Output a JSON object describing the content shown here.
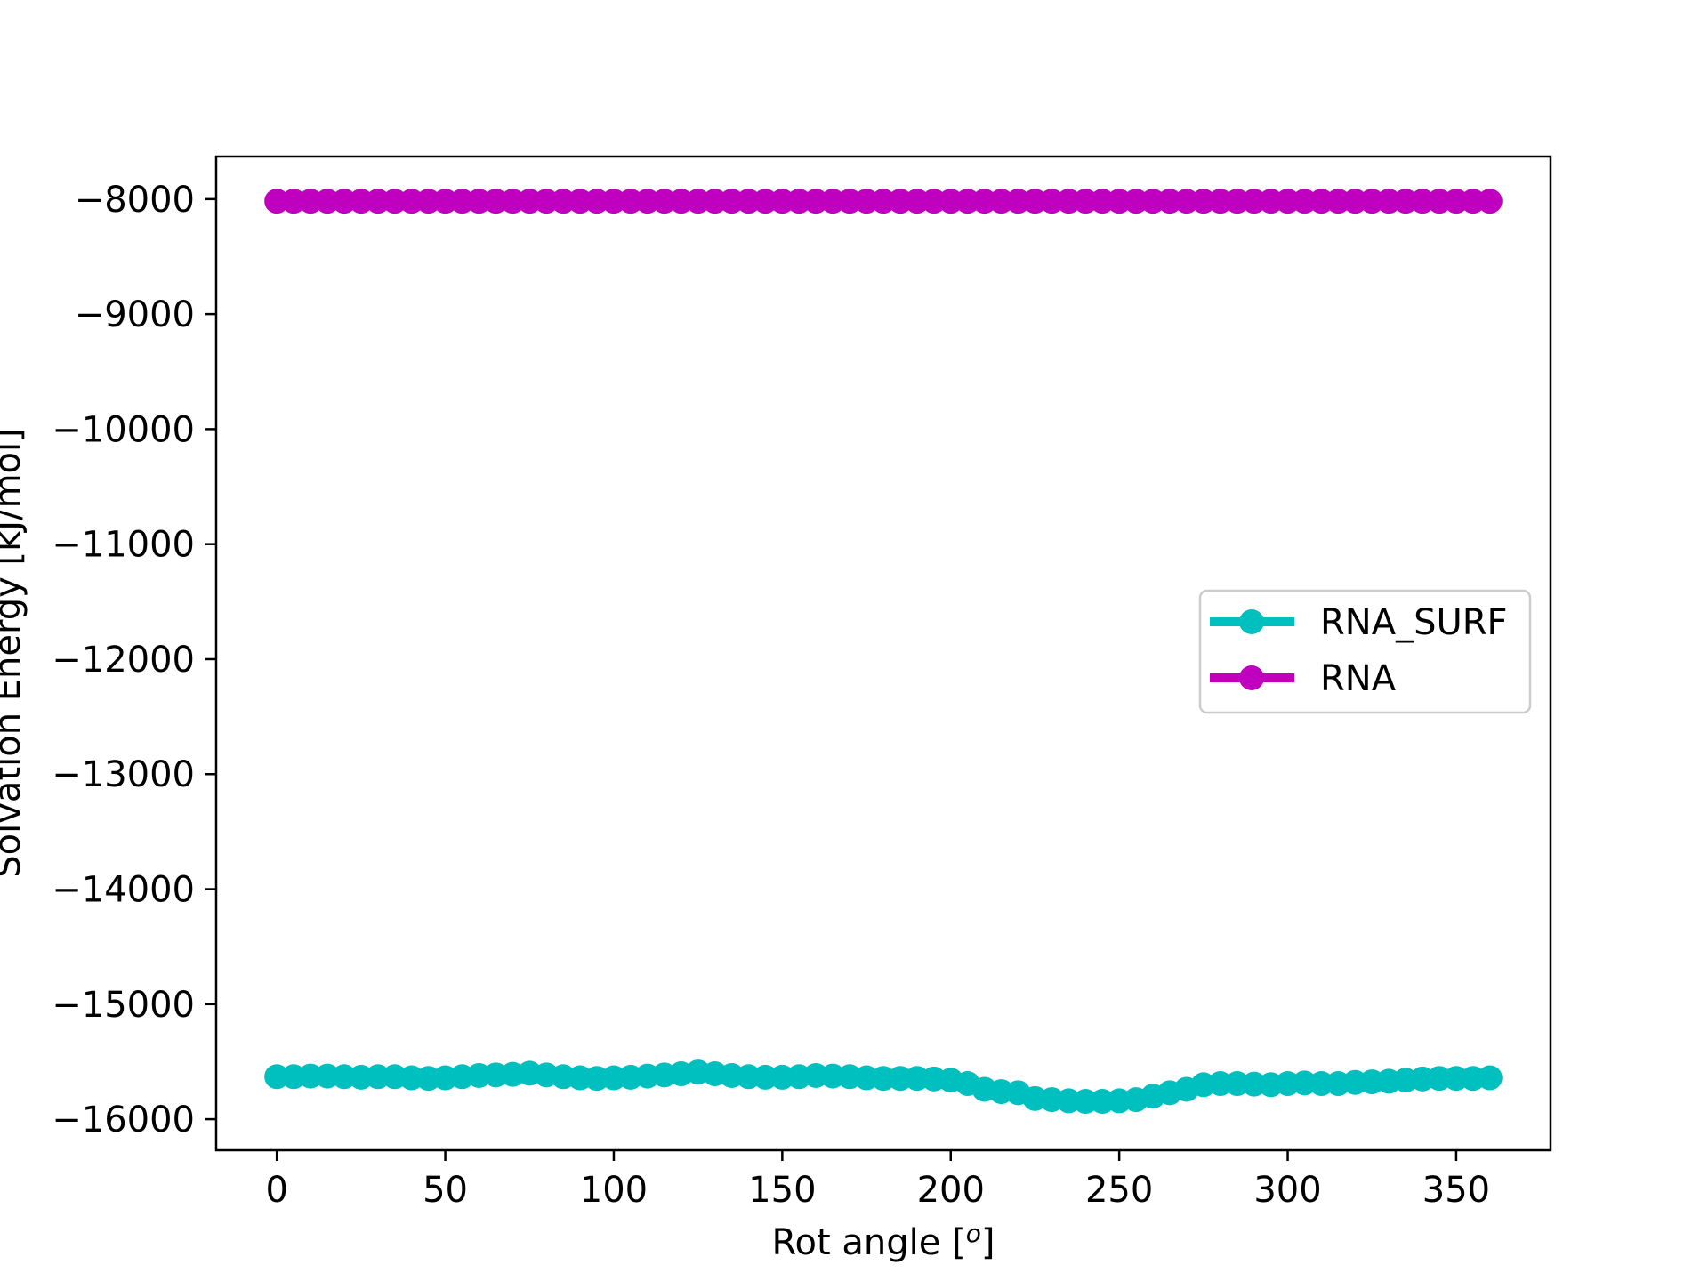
{
  "chart_data": {
    "type": "line",
    "title": "",
    "xlabel": "Rot angle [°]",
    "xlabel_base": "Rot angle [",
    "xlabel_sup": "o",
    "xlabel_end": "]",
    "ylabel": "Solvation Energy [kJ/mol]",
    "xlim": [
      -18,
      378
    ],
    "ylim": [
      -16270,
      -7630
    ],
    "xticks": [
      0,
      50,
      100,
      150,
      200,
      250,
      300,
      350
    ],
    "yticks": [
      -8000,
      -9000,
      -10000,
      -11000,
      -12000,
      -13000,
      -14000,
      -15000,
      -16000
    ],
    "ytick_labels": [
      "−8000",
      "−9000",
      "−10000",
      "−11000",
      "−12000",
      "−13000",
      "−14000",
      "−15000",
      "−16000"
    ],
    "grid": false,
    "legend_position": "center-right",
    "x": [
      0,
      5,
      10,
      15,
      20,
      25,
      30,
      35,
      40,
      45,
      50,
      55,
      60,
      65,
      70,
      75,
      80,
      85,
      90,
      95,
      100,
      105,
      110,
      115,
      120,
      125,
      130,
      135,
      140,
      145,
      150,
      155,
      160,
      165,
      170,
      175,
      180,
      185,
      190,
      195,
      200,
      205,
      210,
      215,
      220,
      225,
      230,
      235,
      240,
      245,
      250,
      255,
      260,
      265,
      270,
      275,
      280,
      285,
      290,
      295,
      300,
      305,
      310,
      315,
      320,
      325,
      330,
      335,
      340,
      345,
      350,
      355,
      360
    ],
    "series": [
      {
        "name": "RNA_SURF",
        "color": "#00bfbf",
        "values": [
          -15630,
          -15630,
          -15625,
          -15625,
          -15630,
          -15635,
          -15630,
          -15630,
          -15640,
          -15645,
          -15640,
          -15630,
          -15620,
          -15615,
          -15610,
          -15600,
          -15615,
          -15630,
          -15640,
          -15645,
          -15640,
          -15635,
          -15625,
          -15615,
          -15605,
          -15590,
          -15605,
          -15620,
          -15630,
          -15635,
          -15635,
          -15630,
          -15620,
          -15625,
          -15630,
          -15640,
          -15645,
          -15645,
          -15645,
          -15650,
          -15660,
          -15690,
          -15740,
          -15760,
          -15770,
          -15820,
          -15830,
          -15840,
          -15845,
          -15845,
          -15840,
          -15830,
          -15800,
          -15770,
          -15740,
          -15700,
          -15690,
          -15690,
          -15695,
          -15700,
          -15690,
          -15685,
          -15690,
          -15690,
          -15680,
          -15675,
          -15670,
          -15660,
          -15650,
          -15645,
          -15645,
          -15645,
          -15640
        ]
      },
      {
        "name": "RNA",
        "color": "#bf00bf",
        "values": [
          -8018,
          -8018,
          -8018,
          -8018,
          -8018,
          -8018,
          -8018,
          -8018,
          -8018,
          -8018,
          -8018,
          -8018,
          -8018,
          -8018,
          -8018,
          -8018,
          -8018,
          -8018,
          -8018,
          -8018,
          -8018,
          -8018,
          -8018,
          -8018,
          -8018,
          -8018,
          -8018,
          -8018,
          -8018,
          -8018,
          -8018,
          -8018,
          -8018,
          -8018,
          -8018,
          -8018,
          -8018,
          -8018,
          -8018,
          -8018,
          -8018,
          -8018,
          -8018,
          -8018,
          -8018,
          -8018,
          -8018,
          -8018,
          -8018,
          -8018,
          -8018,
          -8018,
          -8018,
          -8018,
          -8018,
          -8018,
          -8018,
          -8018,
          -8018,
          -8018,
          -8018,
          -8018,
          -8018,
          -8018,
          -8018,
          -8018,
          -8018,
          -8018,
          -8018,
          -8018,
          -8018,
          -8018,
          -8018
        ]
      }
    ]
  }
}
